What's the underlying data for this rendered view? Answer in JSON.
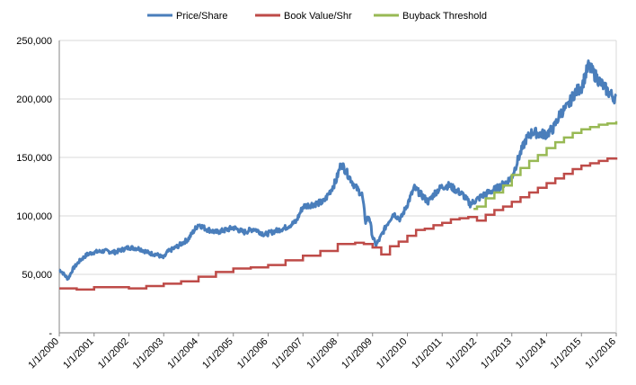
{
  "chart_data": {
    "type": "line",
    "title": "",
    "xlabel": "",
    "ylabel": "",
    "ylim": [
      0,
      250000
    ],
    "xlim": [
      "1/1/2000",
      "1/1/2016"
    ],
    "y_ticks": [
      "-",
      "50,000",
      "100,000",
      "150,000",
      "200,000",
      "250,000"
    ],
    "y_tick_values": [
      0,
      50000,
      100000,
      150000,
      200000,
      250000
    ],
    "x_ticks": [
      "1/1/2000",
      "1/1/2001",
      "1/1/2002",
      "1/1/2003",
      "1/1/2004",
      "1/1/2005",
      "1/1/2006",
      "1/1/2007",
      "1/1/2008",
      "1/1/2009",
      "1/1/2010",
      "1/1/2011",
      "1/1/2012",
      "1/1/2013",
      "1/1/2014",
      "1/1/2015",
      "1/1/2016"
    ],
    "grid": "horizontal",
    "legend": "top",
    "series": [
      {
        "name": "Price/Share",
        "color": "#4a7ebb",
        "x": [
          2000.0,
          2000.08,
          2000.25,
          2000.4,
          2000.6,
          2000.8,
          2001.0,
          2001.3,
          2001.6,
          2002.0,
          2002.3,
          2002.6,
          2002.8,
          2003.0,
          2003.1,
          2003.4,
          2003.7,
          2004.0,
          2004.2,
          2004.5,
          2004.8,
          2005.0,
          2005.3,
          2005.6,
          2005.9,
          2006.2,
          2006.5,
          2006.8,
          2007.0,
          2007.3,
          2007.6,
          2007.8,
          2007.95,
          2008.1,
          2008.3,
          2008.5,
          2008.7,
          2008.8,
          2008.9,
          2009.0,
          2009.1,
          2009.2,
          2009.4,
          2009.6,
          2009.8,
          2010.0,
          2010.2,
          2010.4,
          2010.6,
          2010.8,
          2011.0,
          2011.2,
          2011.4,
          2011.6,
          2011.8,
          2012.0,
          2012.2,
          2012.4,
          2012.6,
          2012.8,
          2013.0,
          2013.2,
          2013.4,
          2013.6,
          2013.8,
          2014.0,
          2014.2,
          2014.4,
          2014.6,
          2014.8,
          2015.0,
          2015.2,
          2015.4,
          2015.6,
          2015.8,
          2016.0
        ],
        "values": [
          54000,
          52000,
          46000,
          55000,
          62000,
          67000,
          69000,
          70000,
          69000,
          73000,
          72000,
          68000,
          67000,
          64000,
          69000,
          74000,
          80000,
          93000,
          89000,
          86000,
          88000,
          90000,
          86000,
          89000,
          84000,
          87000,
          90000,
          95000,
          108000,
          110000,
          112000,
          122000,
          130000,
          145000,
          135000,
          125000,
          118000,
          95000,
          100000,
          82000,
          75000,
          80000,
          92000,
          102000,
          97000,
          110000,
          124000,
          118000,
          112000,
          120000,
          125000,
          126000,
          122000,
          118000,
          110000,
          114000,
          118000,
          121000,
          124000,
          128000,
          133000,
          150000,
          165000,
          172000,
          170000,
          170000,
          175000,
          188000,
          193000,
          205000,
          210000,
          228000,
          220000,
          212000,
          205000,
          200000
        ]
      },
      {
        "name": "Book Value/Shr",
        "color": "#be4b48",
        "x": [
          2000.0,
          2000.5,
          2001.0,
          2001.5,
          2002.0,
          2002.5,
          2003.0,
          2003.5,
          2004.0,
          2004.5,
          2005.0,
          2005.5,
          2006.0,
          2006.5,
          2007.0,
          2007.5,
          2008.0,
          2008.5,
          2008.75,
          2009.0,
          2009.25,
          2009.5,
          2009.75,
          2010.0,
          2010.25,
          2010.5,
          2010.75,
          2011.0,
          2011.25,
          2011.5,
          2011.75,
          2012.0,
          2012.25,
          2012.5,
          2012.75,
          2013.0,
          2013.25,
          2013.5,
          2013.75,
          2014.0,
          2014.25,
          2014.5,
          2014.75,
          2015.0,
          2015.25,
          2015.5,
          2015.75,
          2016.0
        ],
        "values": [
          38000,
          37000,
          39000,
          39000,
          38000,
          40000,
          42000,
          44000,
          48000,
          52000,
          55000,
          56000,
          58000,
          62000,
          66000,
          70000,
          76000,
          77000,
          76000,
          73000,
          67000,
          74000,
          78000,
          83000,
          88000,
          89000,
          92000,
          94000,
          97000,
          98000,
          99000,
          96000,
          101000,
          105000,
          108000,
          112000,
          116000,
          120000,
          124000,
          128000,
          132000,
          136000,
          140000,
          143000,
          145000,
          147000,
          149000,
          150000
        ]
      },
      {
        "name": "Buyback Threshold",
        "color": "#98b954",
        "x": [
          2011.9,
          2012.0,
          2012.25,
          2012.5,
          2012.75,
          2013.0,
          2013.25,
          2013.5,
          2013.75,
          2014.0,
          2014.25,
          2014.5,
          2014.75,
          2015.0,
          2015.25,
          2015.5,
          2015.75,
          2016.0
        ],
        "values": [
          106000,
          108000,
          115000,
          120000,
          126000,
          135000,
          141000,
          147000,
          152000,
          158000,
          163000,
          167000,
          171000,
          174000,
          176000,
          178000,
          179000,
          181000
        ]
      }
    ]
  }
}
